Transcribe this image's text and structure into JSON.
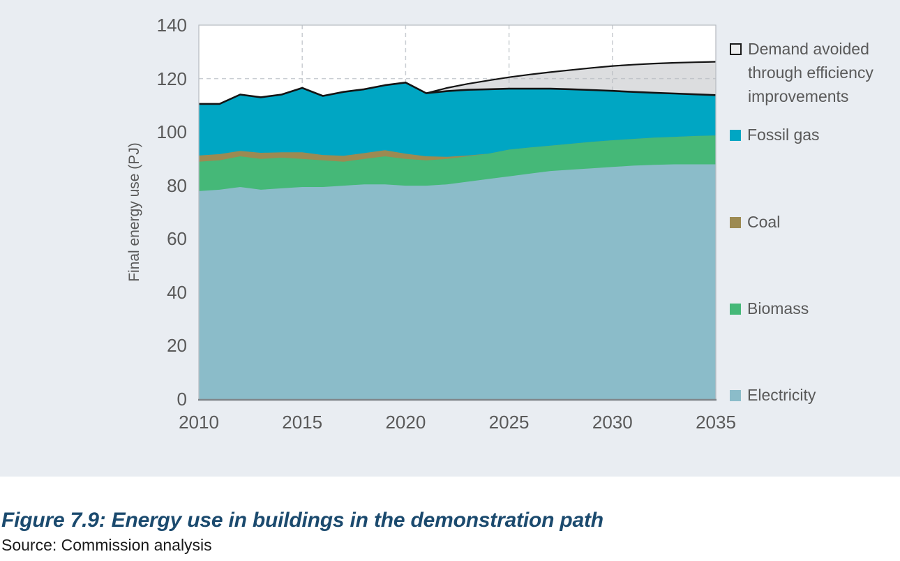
{
  "colors": {
    "panel_background": "#E9EDF2",
    "plot_background": "#FFFFFF",
    "gridline": "#C9CDD2",
    "plot_border": "#B9BEC3",
    "axis_line": "#7F8589",
    "axis_text": "#595959",
    "outline_black": "#141414",
    "caption_text": "#1B4A6E",
    "source_text": "#1A1A1A"
  },
  "chart_data": {
    "type": "area",
    "stacked": true,
    "title": "",
    "xlabel": "",
    "ylabel": "Final energy use (PJ)",
    "xlim": [
      2010,
      2035
    ],
    "ylim": [
      0,
      140
    ],
    "xticks": [
      2010,
      2015,
      2020,
      2025,
      2030,
      2035
    ],
    "yticks": [
      0,
      20,
      40,
      60,
      80,
      100,
      120,
      140
    ],
    "grid": "dashed",
    "legend_position": "right",
    "x": [
      2010,
      2011,
      2012,
      2013,
      2014,
      2015,
      2016,
      2017,
      2018,
      2019,
      2020,
      2021,
      2022,
      2023,
      2024,
      2025,
      2026,
      2027,
      2028,
      2029,
      2030,
      2031,
      2032,
      2033,
      2034,
      2035
    ],
    "series": [
      {
        "name": "Electricity",
        "color": "#8BBCC9",
        "values": [
          78,
          78.5,
          79.5,
          78.5,
          79,
          79.5,
          79.5,
          80,
          80.5,
          80.5,
          80,
          80,
          80.5,
          81.5,
          82.5,
          83.5,
          84.5,
          85.5,
          86,
          86.5,
          87,
          87.5,
          87.8,
          88,
          88,
          88
        ]
      },
      {
        "name": "Biomass",
        "color": "#45B878",
        "values": [
          11,
          11,
          11.5,
          11.5,
          11.5,
          10.5,
          10,
          9,
          9.5,
          10.5,
          10,
          9.5,
          9.5,
          9.5,
          9.5,
          10,
          9.8,
          9.5,
          9.7,
          9.9,
          10,
          10,
          10.2,
          10.3,
          10.6,
          10.8
        ]
      },
      {
        "name": "Coal",
        "color": "#9C8A52",
        "values": [
          2.3,
          2.3,
          2,
          2.3,
          2,
          2.5,
          2,
          2.2,
          2.2,
          2.3,
          2,
          1.5,
          0.8,
          0.3,
          0,
          0,
          0,
          0,
          0,
          0,
          0,
          0,
          0,
          0,
          0,
          0
        ]
      },
      {
        "name": "Fossil gas",
        "color": "#00A6C3",
        "values": [
          19.2,
          18.7,
          21,
          20.7,
          21.5,
          24,
          22,
          23.8,
          23.8,
          24.2,
          26.5,
          23.5,
          24.5,
          24.5,
          24,
          22.7,
          21.9,
          21.2,
          20.3,
          19.3,
          18.4,
          17.5,
          16.7,
          16.1,
          15.5,
          15
        ]
      },
      {
        "name": "Demand avoided through efficiency improvements",
        "color": "#B9BCBF",
        "fill_opacity": 0.5,
        "outlined": true,
        "values": [
          0,
          0,
          0,
          0,
          0,
          0,
          0,
          0,
          0,
          0,
          0,
          0,
          1.2,
          2.2,
          3.3,
          4.3,
          5.3,
          6.2,
          7.2,
          8.3,
          9.3,
          10.2,
          10.9,
          11.5,
          12,
          12.5
        ]
      }
    ]
  },
  "legend": {
    "items": [
      {
        "label": "Demand avoided through efficiency improvements",
        "color": "#ECEDEE",
        "style": "outlined"
      },
      {
        "label": "Fossil gas",
        "color": "#00A6C3",
        "style": "solid"
      },
      {
        "label": "Coal",
        "color": "#9C8A52",
        "style": "solid"
      },
      {
        "label": "Biomass",
        "color": "#45B878",
        "style": "solid"
      },
      {
        "label": "Electricity",
        "color": "#8BBCC9",
        "style": "solid"
      }
    ]
  },
  "caption": {
    "figure_label": "Figure 7.9: Energy use in buildings in the demonstration path"
  },
  "source": {
    "text": "Source: Commission analysis"
  }
}
